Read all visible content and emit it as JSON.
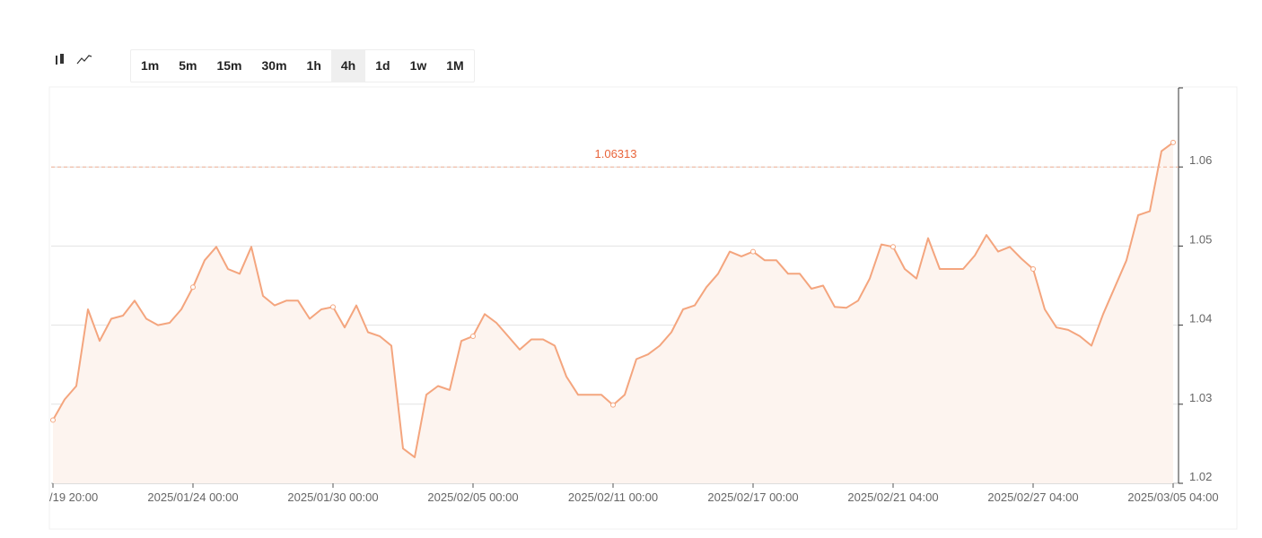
{
  "toolbar": {
    "intervals": [
      "1m",
      "5m",
      "15m",
      "30m",
      "1h",
      "4h",
      "1d",
      "1w",
      "1M"
    ],
    "selected_index": 5
  },
  "chart_data": {
    "type": "line",
    "fill": true,
    "color": "#f4a57e",
    "fill_color": "#fdf4ef",
    "x": [
      0,
      2,
      4,
      6,
      8,
      10,
      12,
      14,
      16,
      18,
      20,
      22,
      24,
      26,
      28,
      30,
      32,
      34,
      36,
      38,
      40,
      42,
      44,
      46,
      48,
      50,
      52,
      54,
      56,
      58,
      60,
      62,
      64,
      66,
      68,
      70,
      72,
      74,
      76,
      78,
      80,
      82,
      84,
      86,
      88,
      90,
      92,
      94,
      96,
      98,
      100,
      102,
      104,
      106,
      108,
      110,
      112,
      114,
      116,
      118,
      120,
      122,
      124,
      126,
      128,
      130,
      132,
      134,
      136,
      138,
      140,
      142,
      144,
      146,
      148,
      150,
      152,
      154,
      156,
      158,
      160,
      162,
      164,
      166,
      168,
      170,
      172,
      174,
      176,
      178,
      180,
      182,
      184,
      186,
      188,
      190,
      192
    ],
    "values": [
      1.028,
      1.0306,
      1.0323,
      1.042,
      1.038,
      1.0408,
      1.0412,
      1.0431,
      1.0408,
      1.04,
      1.0403,
      1.042,
      1.0448,
      1.0482,
      1.0499,
      1.0471,
      1.0465,
      1.0499,
      1.0437,
      1.0425,
      1.0431,
      1.0431,
      1.0408,
      1.042,
      1.0423,
      1.0397,
      1.0425,
      1.0391,
      1.0386,
      1.0374,
      1.0244,
      1.0233,
      1.0312,
      1.0323,
      1.0318,
      1.038,
      1.0386,
      1.0414,
      1.0403,
      1.0386,
      1.0369,
      1.0382,
      1.0382,
      1.0374,
      1.0335,
      1.0312,
      1.0312,
      1.0312,
      1.0299,
      1.0312,
      1.0357,
      1.0363,
      1.0374,
      1.0391,
      1.042,
      1.0425,
      1.0448,
      1.0465,
      1.0493,
      1.0487,
      1.0493,
      1.0482,
      1.0482,
      1.0465,
      1.0465,
      1.0446,
      1.045,
      1.0423,
      1.0422,
      1.0431,
      1.0459,
      1.0502,
      1.0499,
      1.0471,
      1.0459,
      1.051,
      1.0471,
      1.0471,
      1.0471,
      1.0488,
      1.0514,
      1.0493,
      1.0499,
      1.0484,
      1.0471,
      1.042,
      1.0397,
      1.0394,
      1.0386,
      1.0374,
      1.0414,
      1.0448,
      1.0482,
      1.0539,
      1.0544,
      1.062,
      1.0631
    ],
    "xlim": [
      0,
      192
    ],
    "xticks": [
      {
        "value": 0,
        "label": "/19 20:00"
      },
      {
        "value": 24,
        "label": "2025/01/24 00:00"
      },
      {
        "value": 48,
        "label": "2025/01/30 00:00"
      },
      {
        "value": 72,
        "label": "2025/02/05 00:00"
      },
      {
        "value": 96,
        "label": "2025/02/11 00:00"
      },
      {
        "value": 120,
        "label": "2025/02/17 00:00"
      },
      {
        "value": 144,
        "label": "2025/02/21 04:00"
      },
      {
        "value": 168,
        "label": "2025/02/27 04:00"
      },
      {
        "value": 192,
        "label": "2025/03/05 04:00"
      }
    ],
    "ylim": [
      1.02,
      1.07
    ],
    "yticks": [
      1.02,
      1.03,
      1.04,
      1.05,
      1.06
    ],
    "grid": true,
    "reference_line": {
      "value": 1.06,
      "color": "#f0b096",
      "label": "1.06313",
      "label_color": "#e8643a"
    }
  }
}
